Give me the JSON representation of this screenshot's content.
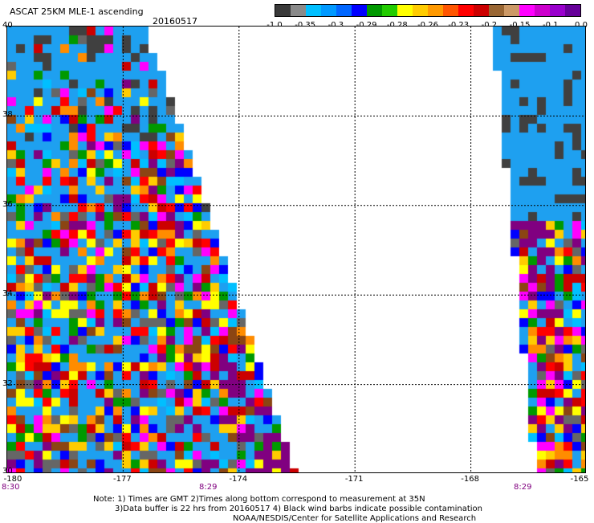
{
  "header": {
    "title": "ASCAT 25KM MLE-1 ascending",
    "date": "20160517"
  },
  "colorbar": {
    "colors": [
      "#3a3a3a",
      "#8a8a8a",
      "#00bfff",
      "#0099ff",
      "#0066ff",
      "#0000ff",
      "#009900",
      "#22cc00",
      "#ffff00",
      "#ffcc00",
      "#ff9900",
      "#ff5500",
      "#ff0000",
      "#cc0000",
      "#996633",
      "#cc9966",
      "#ff00ff",
      "#cc00cc",
      "#9900cc",
      "#660099"
    ],
    "labels": [
      "-1.0",
      "-0.35",
      "-0.3",
      "-0.29",
      "-0.28",
      "-0.26",
      "-0.23",
      "-0.2",
      "-0.15",
      "-0.1",
      "0.0"
    ]
  },
  "map": {
    "lat_labels": [
      "40",
      "38",
      "36",
      "34",
      "32",
      "30"
    ],
    "lon_labels": [
      "-180",
      "-177",
      "-174",
      "-171",
      "-168",
      "-165"
    ],
    "lat_range": [
      30,
      40
    ],
    "lon_range": [
      -180,
      -165
    ],
    "time_labels": [
      "8:30",
      "8:29",
      "8:29"
    ],
    "swaths": [
      {
        "name": "west",
        "lon_edge_top": -176.5,
        "lon_edge_bottom": -172.6
      },
      {
        "name": "east",
        "lon_edge_top": -167.3,
        "lon_edge_bottom": -166.2
      }
    ],
    "palette": {
      "ocean_blue": "#1ea0f0",
      "dark_gray": "#404040",
      "noise": [
        "#ff0000",
        "#ffff00",
        "#ff8c00",
        "#0000ff",
        "#009900",
        "#ff00ff",
        "#8b4513",
        "#800080",
        "#00bfff",
        "#cc0000",
        "#ffcc00",
        "#666666"
      ]
    }
  },
  "notes": {
    "line1": "Note: 1) Times are GMT 2)Times along bottom correspond to measurement at 35N",
    "line2": "3)Data buffer is 22 hrs from 20160517 4) Black wind barbs indicate possible contamination",
    "line3": "NOAA/NESDIS/Center for Satellite Applications and Research"
  }
}
